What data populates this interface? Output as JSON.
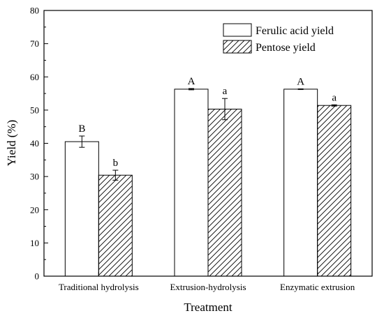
{
  "chart_data": {
    "type": "bar",
    "categories": [
      "Traditional hydrolysis",
      "Extrusion-hydrolysis",
      "Enzymatic extrusion"
    ],
    "series": [
      {
        "name": "Ferulic acid yield",
        "values": [
          40.5,
          56.3,
          56.3
        ],
        "errors": [
          1.7,
          0.2,
          0.1
        ],
        "annotations": [
          "B",
          "A",
          "A"
        ],
        "fill": "#ffffff",
        "pattern": "none"
      },
      {
        "name": "Pentose yield",
        "values": [
          30.4,
          50.3,
          51.4
        ],
        "errors": [
          1.5,
          3.2,
          0.2
        ],
        "annotations": [
          "b",
          "a",
          "a"
        ],
        "fill": "#ffffff",
        "pattern": "diagonal-hatch"
      }
    ],
    "title": "",
    "xlabel": "Treatment",
    "ylabel": "Yield (%)",
    "ylim": [
      0,
      80
    ],
    "yticks": [
      0,
      10,
      20,
      30,
      40,
      50,
      60,
      70,
      80
    ],
    "grid": false,
    "legend_position": "top-right",
    "colors": {
      "axis": "#000000",
      "bar_edge": "#000000"
    }
  }
}
